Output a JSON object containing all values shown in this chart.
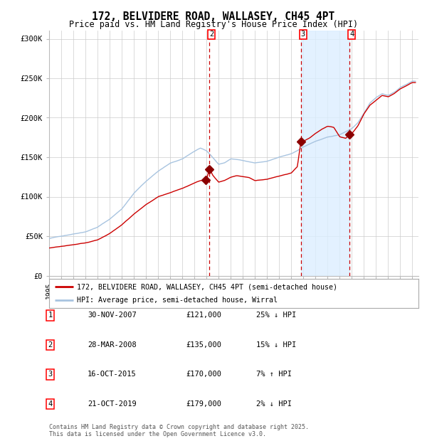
{
  "title": "172, BELVIDERE ROAD, WALLASEY, CH45 4PT",
  "subtitle": "Price paid vs. HM Land Registry's House Price Index (HPI)",
  "transactions": [
    {
      "num": 1,
      "date_label": "30-NOV-2007",
      "price": 121000,
      "pct": "25%",
      "dir": "↓",
      "x_val": 2007.91
    },
    {
      "num": 2,
      "date_label": "28-MAR-2008",
      "price": 135000,
      "pct": "15%",
      "dir": "↓",
      "x_val": 2008.24
    },
    {
      "num": 3,
      "date_label": "16-OCT-2015",
      "price": 170000,
      "pct": "7%",
      "dir": "↑",
      "x_val": 2015.79
    },
    {
      "num": 4,
      "date_label": "21-OCT-2019",
      "price": 179000,
      "pct": "2%",
      "dir": "↓",
      "x_val": 2019.8
    }
  ],
  "vline_nums": [
    2,
    3,
    4
  ],
  "shade_start": 2015.79,
  "shade_end": 2019.8,
  "legend_line1": "172, BELVIDERE ROAD, WALLASEY, CH45 4PT (semi-detached house)",
  "legend_line2": "HPI: Average price, semi-detached house, Wirral",
  "footer1": "Contains HM Land Registry data © Crown copyright and database right 2025.",
  "footer2": "This data is licensed under the Open Government Licence v3.0.",
  "hpi_color": "#a8c4e0",
  "price_color": "#cc0000",
  "marker_color": "#8b0000",
  "vline_color": "#cc0000",
  "shade_color": "#dceeff",
  "bg_color": "#ffffff",
  "grid_color": "#cccccc",
  "ylim": [
    0,
    310000
  ],
  "xlim_start": 1995.0,
  "xlim_end": 2025.5,
  "hpi_anchors_x": [
    1995.0,
    1996.0,
    1997.0,
    1998.0,
    1999.0,
    2000.0,
    2001.0,
    2002.0,
    2003.0,
    2004.0,
    2005.0,
    2006.0,
    2007.0,
    2007.5,
    2008.0,
    2008.5,
    2009.0,
    2009.5,
    2010.0,
    2011.0,
    2012.0,
    2013.0,
    2014.0,
    2015.0,
    2015.5,
    2016.0,
    2017.0,
    2018.0,
    2019.0,
    2019.5,
    2020.0,
    2020.5,
    2021.0,
    2021.5,
    2022.0,
    2022.5,
    2023.0,
    2023.5,
    2024.0,
    2024.5,
    2025.0
  ],
  "hpi_anchors_y": [
    47000,
    50000,
    53000,
    56000,
    62000,
    72000,
    85000,
    105000,
    120000,
    133000,
    143000,
    148000,
    158000,
    162000,
    158000,
    150000,
    141000,
    143000,
    148000,
    146000,
    143000,
    145000,
    150000,
    154000,
    158000,
    163000,
    170000,
    175000,
    178000,
    182000,
    186000,
    193000,
    205000,
    218000,
    225000,
    230000,
    228000,
    232000,
    238000,
    242000,
    246000
  ],
  "price_anchors_x": [
    1995.0,
    1996.0,
    1997.0,
    1998.0,
    1999.0,
    2000.0,
    2001.0,
    2002.0,
    2003.0,
    2004.0,
    2005.0,
    2006.0,
    2007.0,
    2007.5,
    2007.9,
    2008.0,
    2008.24,
    2008.5,
    2009.0,
    2009.5,
    2010.0,
    2010.5,
    2011.0,
    2011.5,
    2012.0,
    2012.5,
    2013.0,
    2013.5,
    2014.0,
    2014.5,
    2015.0,
    2015.5,
    2015.79,
    2016.0,
    2016.5,
    2017.0,
    2017.5,
    2018.0,
    2018.5,
    2019.0,
    2019.5,
    2019.8,
    2020.0,
    2020.5,
    2021.0,
    2021.5,
    2022.0,
    2022.5,
    2023.0,
    2023.5,
    2024.0,
    2024.5,
    2025.0
  ],
  "price_anchors_y": [
    35000,
    37000,
    39000,
    41000,
    45000,
    53000,
    64000,
    78000,
    90000,
    100000,
    105000,
    110000,
    117000,
    120000,
    121000,
    121000,
    135000,
    127000,
    118000,
    120000,
    124000,
    126000,
    125000,
    124000,
    120000,
    121000,
    122000,
    124000,
    126000,
    128000,
    130000,
    138000,
    170000,
    170000,
    174000,
    180000,
    185000,
    189000,
    188000,
    176000,
    174000,
    179000,
    180000,
    190000,
    205000,
    216000,
    222000,
    228000,
    226000,
    230000,
    236000,
    240000,
    244000
  ],
  "noise_seed": 42
}
